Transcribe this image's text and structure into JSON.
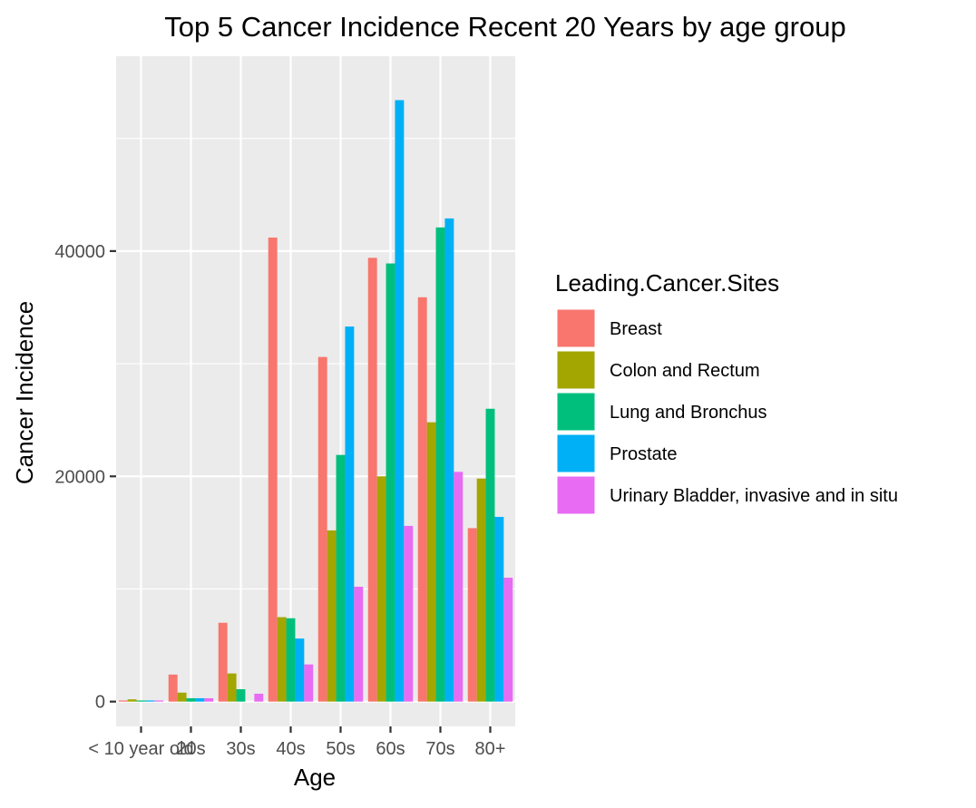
{
  "chart_data": {
    "type": "bar",
    "title": "Top 5 Cancer Incidence Recent 20 Years by age group",
    "xlabel": "Age",
    "ylabel": "Cancer Incidence",
    "categories": [
      "< 10 year old",
      "20s",
      "30s",
      "40s",
      "50s",
      "60s",
      "70s",
      "80+"
    ],
    "y_ticks": [
      0,
      20000,
      40000
    ],
    "y_tick_labels": [
      "0",
      "20000",
      "40000"
    ],
    "ylim": [
      -2200,
      57300
    ],
    "grid": true,
    "legend_title": "Leading.Cancer.Sites",
    "legend_position": "right",
    "series": [
      {
        "name": "Breast",
        "color": "#F8766D",
        "values": [
          100,
          2400,
          7000,
          41200,
          30600,
          39400,
          35900,
          15400
        ]
      },
      {
        "name": "Colon and Rectum",
        "color": "#A3A500",
        "values": [
          200,
          800,
          2500,
          7500,
          15200,
          20000,
          24800,
          19800
        ]
      },
      {
        "name": "Lung and Bronchus",
        "color": "#00BF7D",
        "values": [
          100,
          300,
          1100,
          7400,
          21900,
          38900,
          42100,
          26000
        ]
      },
      {
        "name": "Prostate",
        "color": "#00B0F6",
        "values": [
          100,
          300,
          0,
          5600,
          33300,
          53400,
          42900,
          16400
        ]
      },
      {
        "name": "Urinary Bladder, invasive and in situ",
        "color": "#E76BF3",
        "values": [
          100,
          300,
          700,
          3300,
          10200,
          15600,
          20400,
          11000
        ]
      }
    ]
  }
}
